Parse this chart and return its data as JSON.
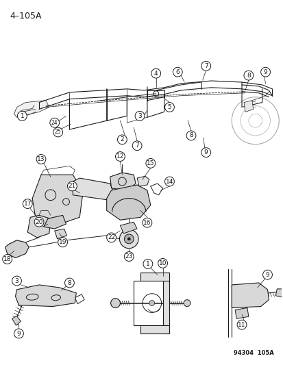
{
  "title": "4–105A",
  "background_color": "#ffffff",
  "figure_code": "94304  105A",
  "title_fontsize": 9,
  "label_fontsize": 6.5,
  "line_color": "#1a1a1a",
  "text_color": "#1a1a1a",
  "fig_width": 4.14,
  "fig_height": 5.33,
  "dpi": 100
}
